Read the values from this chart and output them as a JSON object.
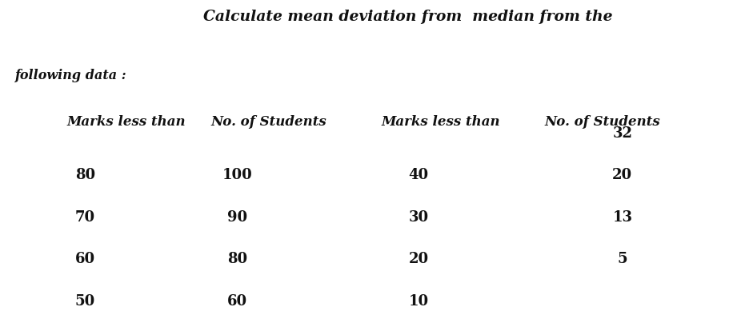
{
  "title": "Calculate mean deviation from  median from the",
  "col1_header1": "Marks less than",
  "col1_header2": "No. of Students",
  "col2_header1": "Marks less than",
  "col2_header2": "No. of Students",
  "following_data_label": "following data :",
  "col1_marks": [
    "80",
    "70",
    "60",
    "50"
  ],
  "col1_students": [
    "100",
    "90",
    "80",
    "60"
  ],
  "col2_marks": [
    "40",
    "30",
    "20",
    "10"
  ],
  "col2_students": [
    "32",
    "20",
    "13",
    "5"
  ],
  "bg_color": "#ffffff",
  "text_color": "#111111",
  "font_family": "serif",
  "title_fontsize": 13.5,
  "header_fontsize": 12,
  "data_fontsize": 13
}
